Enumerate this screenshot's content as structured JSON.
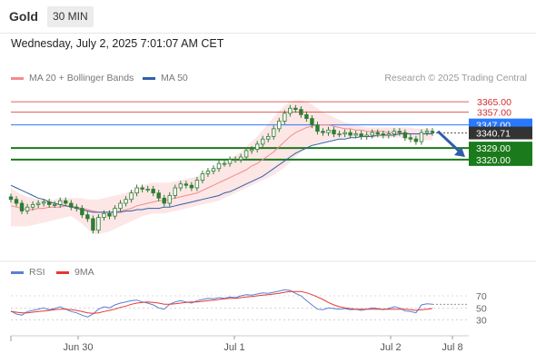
{
  "header": {
    "symbol": "Gold",
    "timeframe": "30 MIN"
  },
  "datetime": "Wednesday, July 2, 2025 7:01:07 AM CET",
  "legend": {
    "ma20_label": "MA 20 + Bollinger Bands",
    "ma50_label": "MA 50",
    "credit": "Research © 2025 Trading Central"
  },
  "rsi_legend": {
    "rsi_label": "RSI",
    "ma_label": "9MA"
  },
  "colors": {
    "ma20": "#f28c8c",
    "ma50": "#2e5fa8",
    "band_fill": "#fde3e3",
    "candle": "#2e7d32",
    "resistance": "#d32f2f",
    "pivot": "#2979ff",
    "support": "#1b7a1b",
    "current": "#333333",
    "rsi": "#5b7fd6",
    "rsi_ma": "#e53935",
    "arrow": "#2e5fa8"
  },
  "chart_data": [
    {
      "type": "candlestick",
      "price_range": [
        3245,
        3375
      ],
      "x_ticks": [
        "Jun 30",
        "Jul 1",
        "Jul 2",
        "Jul 8"
      ],
      "levels": [
        {
          "label": "3365.00",
          "value": 3365.0,
          "kind": "resistance"
        },
        {
          "label": "3357.00",
          "value": 3357.0,
          "kind": "resistance"
        },
        {
          "label": "3347.00",
          "value": 3347.0,
          "kind": "pivot"
        },
        {
          "label": "3340.71",
          "value": 3340.71,
          "kind": "current"
        },
        {
          "label": "3329.00",
          "value": 3329.0,
          "kind": "support"
        },
        {
          "label": "3320.00",
          "value": 3320.0,
          "kind": "support"
        }
      ],
      "arrow": {
        "direction": "down",
        "from_price": 3342,
        "to_price": 3322
      },
      "close": [
        3289,
        3286,
        3280,
        3283,
        3285,
        3286,
        3287,
        3285,
        3285,
        3288,
        3286,
        3283,
        3282,
        3277,
        3274,
        3265,
        3275,
        3278,
        3276,
        3282,
        3286,
        3289,
        3294,
        3298,
        3297,
        3297,
        3294,
        3290,
        3286,
        3292,
        3298,
        3301,
        3300,
        3298,
        3304,
        3309,
        3311,
        3313,
        3317,
        3317,
        3320,
        3320,
        3322,
        3327,
        3328,
        3332,
        3336,
        3338,
        3344,
        3350,
        3356,
        3360,
        3359,
        3355,
        3352,
        3347,
        3342,
        3341,
        3343,
        3340,
        3340,
        3341,
        3339,
        3340,
        3338,
        3339,
        3341,
        3340,
        3339,
        3340,
        3342,
        3341,
        3337,
        3336,
        3334,
        3341,
        3342,
        3341
      ],
      "ma20": [
        3284,
        3283,
        3282,
        3281,
        3281,
        3282,
        3282,
        3283,
        3283,
        3283,
        3284,
        3284,
        3283,
        3282,
        3281,
        3280,
        3279,
        3279,
        3279,
        3279,
        3280,
        3281,
        3282,
        3284,
        3285,
        3286,
        3287,
        3288,
        3288,
        3289,
        3290,
        3291,
        3292,
        3293,
        3294,
        3296,
        3298,
        3300,
        3302,
        3304,
        3306,
        3308,
        3310,
        3312,
        3315,
        3317,
        3320,
        3323,
        3326,
        3330,
        3334,
        3338,
        3341,
        3343,
        3345,
        3346,
        3347,
        3347,
        3347,
        3346,
        3345,
        3344,
        3344,
        3343,
        3343,
        3342,
        3342,
        3342,
        3342,
        3341,
        3341,
        3341,
        3341,
        3340,
        3340,
        3340,
        3340,
        3340
      ],
      "bb_upper": [
        3298,
        3295,
        3293,
        3291,
        3290,
        3289,
        3289,
        3289,
        3289,
        3290,
        3290,
        3290,
        3290,
        3290,
        3289,
        3289,
        3289,
        3290,
        3291,
        3292,
        3293,
        3294,
        3296,
        3298,
        3300,
        3301,
        3302,
        3302,
        3302,
        3302,
        3303,
        3304,
        3305,
        3306,
        3307,
        3309,
        3311,
        3313,
        3316,
        3318,
        3321,
        3323,
        3326,
        3330,
        3334,
        3338,
        3343,
        3348,
        3353,
        3358,
        3362,
        3365,
        3366,
        3366,
        3365,
        3363,
        3360,
        3357,
        3355,
        3353,
        3351,
        3349,
        3348,
        3347,
        3346,
        3345,
        3345,
        3345,
        3345,
        3345,
        3345,
        3345,
        3345,
        3345,
        3344,
        3344,
        3344,
        3344
      ],
      "bb_lower": [
        3268,
        3268,
        3268,
        3268,
        3269,
        3270,
        3271,
        3272,
        3273,
        3274,
        3275,
        3276,
        3273,
        3270,
        3266,
        3262,
        3262,
        3263,
        3264,
        3266,
        3268,
        3270,
        3272,
        3274,
        3276,
        3277,
        3278,
        3278,
        3278,
        3279,
        3280,
        3281,
        3282,
        3283,
        3284,
        3285,
        3286,
        3287,
        3288,
        3290,
        3292,
        3294,
        3296,
        3298,
        3300,
        3302,
        3304,
        3306,
        3308,
        3311,
        3314,
        3318,
        3322,
        3326,
        3329,
        3331,
        3333,
        3334,
        3335,
        3336,
        3336,
        3337,
        3337,
        3337,
        3337,
        3337,
        3337,
        3337,
        3337,
        3337,
        3337,
        3337,
        3336,
        3335,
        3335,
        3335,
        3335,
        3335
      ],
      "ma50": [
        3300,
        3298,
        3296,
        3294,
        3292,
        3290,
        3289,
        3287,
        3286,
        3285,
        3284,
        3283,
        3282,
        3281,
        3280,
        3279,
        3279,
        3279,
        3279,
        3279,
        3279,
        3280,
        3280,
        3281,
        3281,
        3282,
        3282,
        3282,
        3283,
        3283,
        3284,
        3285,
        3286,
        3287,
        3288,
        3289,
        3290,
        3291,
        3292,
        3294,
        3295,
        3297,
        3299,
        3301,
        3303,
        3305,
        3307,
        3310,
        3313,
        3316,
        3319,
        3322,
        3325,
        3327,
        3329,
        3331,
        3332,
        3333,
        3334,
        3335,
        3336,
        3336,
        3337,
        3337,
        3338,
        3338,
        3338,
        3339,
        3339,
        3339,
        3339,
        3340,
        3340,
        3340,
        3340,
        3340,
        3340,
        3340
      ]
    },
    {
      "type": "line",
      "title": "RSI",
      "y_ticks": [
        30,
        50,
        70
      ],
      "y_range": [
        10,
        85
      ],
      "series": [
        {
          "name": "RSI",
          "values": [
            45,
            40,
            38,
            44,
            46,
            48,
            50,
            47,
            49,
            52,
            48,
            44,
            42,
            38,
            35,
            40,
            48,
            52,
            50,
            55,
            58,
            60,
            62,
            63,
            60,
            58,
            55,
            50,
            48,
            56,
            60,
            62,
            60,
            58,
            62,
            64,
            66,
            65,
            67,
            66,
            68,
            67,
            70,
            72,
            71,
            73,
            75,
            74,
            76,
            78,
            80,
            79,
            74,
            70,
            62,
            55,
            48,
            47,
            50,
            49,
            48,
            49,
            47,
            48,
            46,
            48,
            50,
            49,
            47,
            49,
            52,
            50,
            45,
            44,
            42,
            55,
            57,
            56
          ]
        },
        {
          "name": "9MA",
          "values": [
            44,
            43,
            42,
            42,
            43,
            44,
            45,
            46,
            47,
            48,
            48,
            47,
            46,
            44,
            42,
            41,
            42,
            44,
            46,
            48,
            51,
            53,
            56,
            58,
            59,
            60,
            59,
            58,
            56,
            56,
            57,
            58,
            59,
            60,
            60,
            61,
            62,
            63,
            64,
            65,
            66,
            66,
            67,
            68,
            69,
            70,
            71,
            72,
            73,
            74,
            76,
            77,
            77,
            77,
            75,
            72,
            68,
            64,
            59,
            55,
            52,
            50,
            49,
            48,
            48,
            48,
            48,
            48,
            48,
            48,
            48,
            48,
            48,
            47,
            46,
            47,
            48,
            49
          ]
        }
      ]
    }
  ]
}
